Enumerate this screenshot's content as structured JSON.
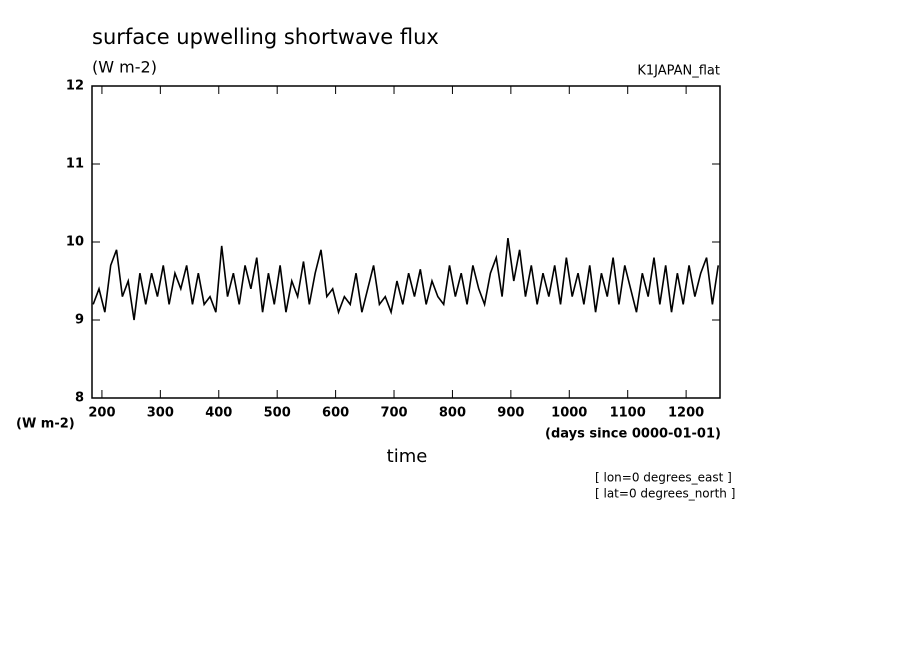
{
  "chart_data": {
    "type": "line",
    "title": "surface upwelling shortwave flux",
    "subtitle": "(W m-2)",
    "dataset_label": "K1JAPAN_flat",
    "y_unit_label": "(W m-2)",
    "x_unit_label": "(days since 0000-01-01)",
    "x_label": "time",
    "annotations": [
      "[ lon=0 degrees_east ]",
      "[ lat=0 degrees_north ]"
    ],
    "x": [
      185,
      195,
      205,
      215,
      225,
      235,
      245,
      255,
      265,
      275,
      285,
      295,
      305,
      315,
      325,
      335,
      345,
      355,
      365,
      375,
      385,
      395,
      405,
      415,
      425,
      435,
      445,
      455,
      465,
      475,
      485,
      495,
      505,
      515,
      525,
      535,
      545,
      555,
      565,
      575,
      585,
      595,
      605,
      615,
      625,
      635,
      645,
      655,
      665,
      675,
      685,
      695,
      705,
      715,
      725,
      735,
      745,
      755,
      765,
      775,
      785,
      795,
      805,
      815,
      825,
      835,
      845,
      855,
      865,
      875,
      885,
      895,
      905,
      915,
      925,
      935,
      945,
      955,
      965,
      975,
      985,
      995,
      1005,
      1015,
      1025,
      1035,
      1045,
      1055,
      1065,
      1075,
      1085,
      1095,
      1105,
      1115,
      1125,
      1135,
      1145,
      1155,
      1165,
      1175,
      1185,
      1195,
      1205,
      1215,
      1225,
      1235,
      1245,
      1255
    ],
    "series": [
      {
        "name": "surface upwelling shortwave flux",
        "color": "#000000",
        "values": [
          9.2,
          9.4,
          9.1,
          9.7,
          9.9,
          9.3,
          9.5,
          9.0,
          9.6,
          9.2,
          9.6,
          9.3,
          9.7,
          9.2,
          9.6,
          9.4,
          9.7,
          9.2,
          9.6,
          9.2,
          9.3,
          9.1,
          9.95,
          9.3,
          9.6,
          9.2,
          9.7,
          9.4,
          9.8,
          9.1,
          9.6,
          9.2,
          9.7,
          9.1,
          9.5,
          9.3,
          9.75,
          9.2,
          9.6,
          9.9,
          9.3,
          9.4,
          9.1,
          9.3,
          9.2,
          9.6,
          9.1,
          9.4,
          9.7,
          9.2,
          9.3,
          9.1,
          9.5,
          9.2,
          9.6,
          9.3,
          9.65,
          9.2,
          9.5,
          9.3,
          9.2,
          9.7,
          9.3,
          9.6,
          9.2,
          9.7,
          9.4,
          9.2,
          9.6,
          9.8,
          9.3,
          10.05,
          9.5,
          9.9,
          9.3,
          9.7,
          9.2,
          9.6,
          9.3,
          9.7,
          9.2,
          9.8,
          9.3,
          9.6,
          9.2,
          9.7,
          9.1,
          9.6,
          9.3,
          9.8,
          9.2,
          9.7,
          9.4,
          9.1,
          9.6,
          9.3,
          9.8,
          9.2,
          9.7,
          9.1,
          9.6,
          9.2,
          9.7,
          9.3,
          9.6,
          9.8,
          9.2,
          9.7
        ]
      }
    ],
    "xlim": [
      183,
      1258
    ],
    "ylim": [
      8,
      12
    ],
    "xticks": [
      200,
      300,
      400,
      500,
      600,
      700,
      800,
      900,
      1000,
      1100,
      1200
    ],
    "yticks": [
      8,
      9,
      10,
      11,
      12
    ]
  }
}
